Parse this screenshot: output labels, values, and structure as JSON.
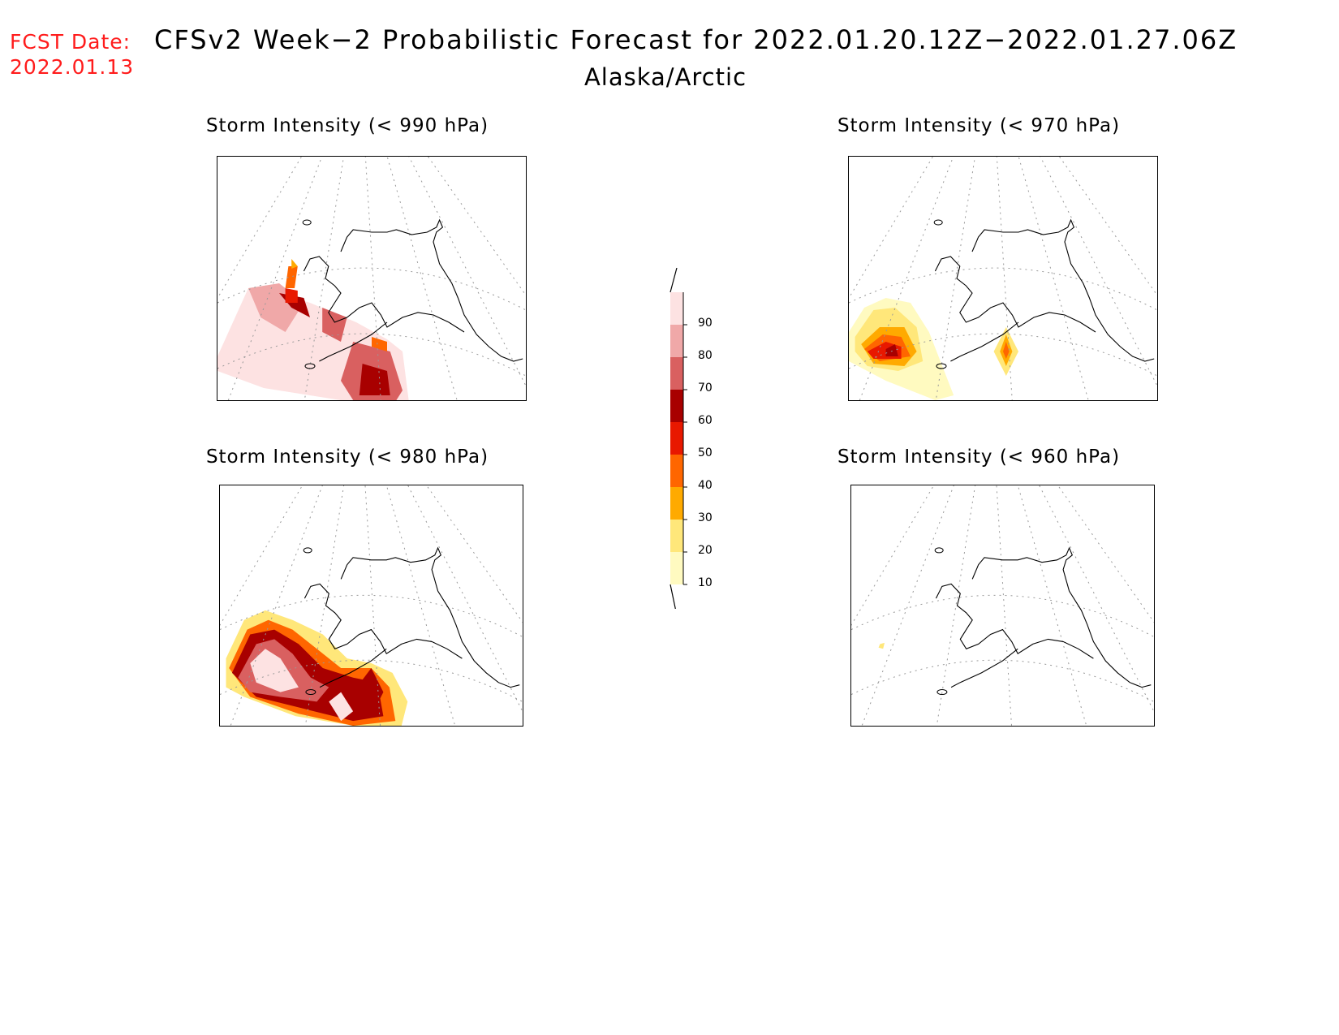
{
  "header": {
    "fcst_label": "FCST Date:",
    "fcst_date": "2022.01.13",
    "title": "CFSv2 Week−2 Probabilistic Forecast for 2022.01.20.12Z−2022.01.27.06Z",
    "subtitle": "Alaska/Arctic"
  },
  "panels": [
    {
      "id": "p990",
      "title": "Storm Intensity (< 990 hPa)"
    },
    {
      "id": "p970",
      "title": "Storm Intensity (< 970 hPa)"
    },
    {
      "id": "p980",
      "title": "Storm Intensity (< 980 hPa)"
    },
    {
      "id": "p960",
      "title": "Storm Intensity (< 960 hPa)"
    }
  ],
  "legend": {
    "levels": [
      "10",
      "20",
      "30",
      "40",
      "50",
      "60",
      "70",
      "80",
      "90"
    ],
    "colors": [
      "#fffac0",
      "#ffe77a",
      "#ffaa00",
      "#ff6600",
      "#e81800",
      "#a80000",
      "#d96060",
      "#f0a8a8",
      "#fde2e2"
    ]
  }
}
